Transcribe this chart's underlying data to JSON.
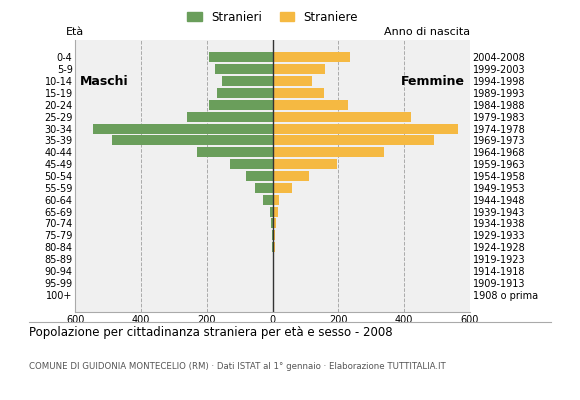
{
  "age_groups": [
    "100+",
    "95-99",
    "90-94",
    "85-89",
    "80-84",
    "75-79",
    "70-74",
    "65-69",
    "60-64",
    "55-59",
    "50-54",
    "45-49",
    "40-44",
    "35-39",
    "30-34",
    "25-29",
    "20-24",
    "15-19",
    "10-14",
    "5-9",
    "0-4"
  ],
  "birth_years": [
    "1908 o prima",
    "1909-1913",
    "1914-1918",
    "1919-1923",
    "1924-1928",
    "1929-1933",
    "1934-1938",
    "1939-1943",
    "1944-1948",
    "1949-1953",
    "1954-1958",
    "1959-1963",
    "1964-1968",
    "1969-1973",
    "1974-1978",
    "1979-1983",
    "1984-1988",
    "1989-1993",
    "1994-1998",
    "1999-2003",
    "2004-2008"
  ],
  "males": [
    0,
    0,
    0,
    0,
    2,
    2,
    5,
    8,
    30,
    55,
    80,
    130,
    230,
    490,
    545,
    260,
    195,
    170,
    155,
    175,
    195
  ],
  "females": [
    0,
    2,
    4,
    5,
    6,
    8,
    10,
    15,
    20,
    60,
    110,
    195,
    340,
    490,
    565,
    420,
    230,
    155,
    120,
    160,
    235
  ],
  "color_males": "#6a9e5b",
  "color_females": "#f5b942",
  "background_color": "#f0f0f0",
  "grid_color": "#aaaaaa",
  "title": "Popolazione per cittadinanza straniera per età e sesso - 2008",
  "subtitle": "COMUNE DI GUIDONIA MONTECELIO (RM) · Dati ISTAT al 1° gennaio · Elaborazione TUTTITALIA.IT",
  "label_maschi": "Maschi",
  "label_femmine": "Femmine",
  "legend_stranieri": "Stranieri",
  "legend_straniere": "Straniere",
  "eta_label": "Età",
  "anno_label": "Anno di nascita",
  "xlim": 600,
  "tick_fontsize": 7.0,
  "bar_height": 0.85
}
